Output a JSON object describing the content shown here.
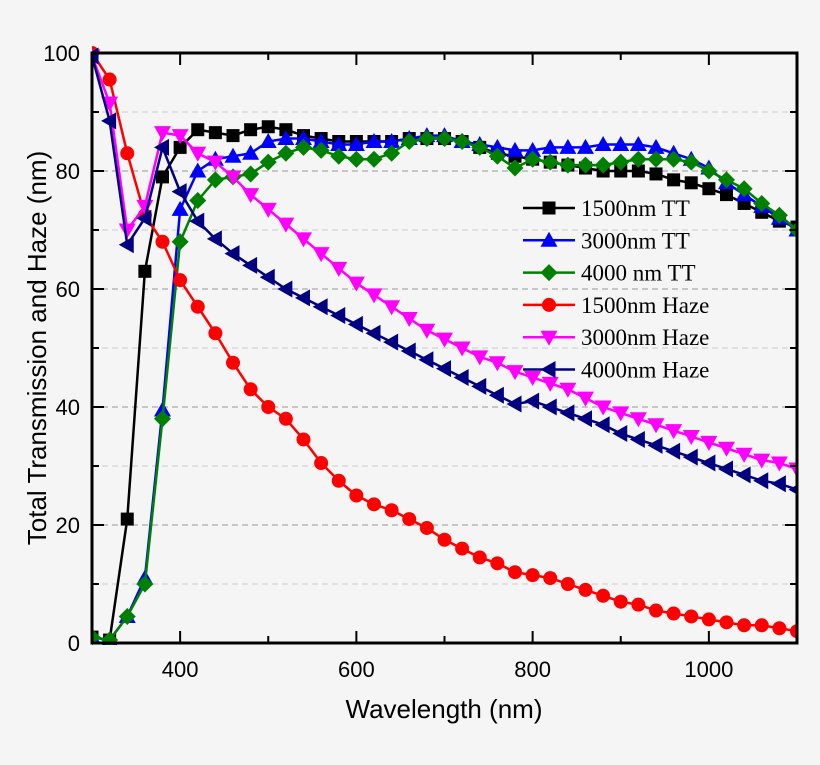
{
  "chart_data": {
    "type": "line",
    "title": "",
    "xlabel": "Wavelength (nm)",
    "ylabel": "Total Transmission and Haze (nm)",
    "xlim": [
      300,
      1100
    ],
    "ylim": [
      0,
      100
    ],
    "xticks": [
      400,
      600,
      800,
      1000
    ],
    "yticks": [
      0,
      20,
      40,
      60,
      80,
      100
    ],
    "grid": true,
    "legend_position": "center-right",
    "x": [
      300,
      320,
      340,
      360,
      380,
      400,
      420,
      440,
      460,
      480,
      500,
      520,
      540,
      560,
      580,
      600,
      620,
      640,
      660,
      680,
      700,
      720,
      740,
      760,
      780,
      800,
      820,
      840,
      860,
      880,
      900,
      920,
      940,
      960,
      980,
      1000,
      1020,
      1040,
      1060,
      1080,
      1100
    ],
    "series": [
      {
        "name": "1500nm TT",
        "color": "#000000",
        "marker": "square",
        "values": [
          1,
          0.5,
          21,
          63,
          79,
          84,
          87,
          86.5,
          86,
          87,
          87.5,
          87,
          86,
          85.5,
          85,
          85,
          85,
          85,
          85.5,
          85.5,
          85.5,
          85,
          84,
          83,
          82.5,
          82,
          81.5,
          81,
          80.5,
          80,
          80,
          80,
          79.5,
          78.5,
          78,
          77,
          76,
          74.5,
          73,
          71.5,
          70.5
        ]
      },
      {
        "name": "3000nm TT",
        "color": "#0000ff",
        "marker": "triangle-up",
        "values": [
          1,
          0.5,
          4.5,
          11,
          39.5,
          73.5,
          80,
          82,
          82.5,
          83,
          85,
          85.5,
          85.5,
          85,
          84.5,
          84.5,
          85,
          85,
          85.5,
          86,
          86,
          85,
          84.5,
          84,
          83.5,
          83.5,
          84,
          84,
          84,
          84.5,
          84.5,
          84.5,
          84,
          83,
          82,
          80.5,
          78,
          76,
          74,
          72,
          70
        ]
      },
      {
        "name": "4000 nm TT",
        "color": "#008000",
        "marker": "diamond",
        "values": [
          1,
          0.5,
          4.5,
          10,
          38,
          68,
          75,
          78.5,
          79,
          79.5,
          81.5,
          83,
          84,
          83.5,
          82.5,
          82,
          82,
          83,
          85,
          85.5,
          85.5,
          85,
          84,
          82.5,
          80.5,
          82,
          81.5,
          81,
          81,
          81,
          81.5,
          82,
          82,
          82,
          81.5,
          80,
          78.5,
          77,
          74.5,
          72.5,
          70
        ]
      },
      {
        "name": "1500nm Haze",
        "color": "#ff0000",
        "marker": "circle",
        "values": [
          100,
          95.5,
          83,
          72.5,
          68,
          61.5,
          57,
          52.5,
          47.5,
          43,
          40,
          38,
          34.5,
          30.5,
          27.5,
          25,
          23.5,
          22.5,
          21,
          19.5,
          17.5,
          16,
          14.5,
          13.5,
          12,
          11.5,
          11,
          10,
          9,
          8,
          7,
          6.5,
          5.5,
          5,
          4.5,
          4,
          3.5,
          3,
          3,
          2.5,
          2
        ]
      },
      {
        "name": "3000nm Haze",
        "color": "#ff00ff",
        "marker": "triangle-down",
        "values": [
          99.5,
          91.5,
          70,
          74,
          86.5,
          86,
          83,
          81.5,
          79,
          76,
          73.5,
          71,
          68.5,
          66,
          63.5,
          61,
          59,
          57,
          55,
          53,
          51.5,
          50,
          48.5,
          47.5,
          46,
          45,
          44,
          43,
          41.5,
          40,
          39,
          38,
          37,
          36,
          35,
          34,
          33,
          32,
          31,
          30.5,
          29.5
        ]
      },
      {
        "name": "4000nm Haze",
        "color": "#000080",
        "marker": "triangle-left",
        "values": [
          99.5,
          88.5,
          67.5,
          72,
          84,
          76.5,
          71.5,
          68.5,
          66,
          64,
          62,
          60,
          58.5,
          57,
          55.5,
          54,
          52.5,
          51,
          49.5,
          48,
          46.5,
          45,
          43.5,
          42,
          40.5,
          41,
          40,
          39,
          38,
          37,
          35.5,
          34.5,
          33.5,
          32.5,
          31.5,
          30.5,
          29.5,
          28.5,
          27.5,
          27,
          26
        ]
      }
    ]
  }
}
